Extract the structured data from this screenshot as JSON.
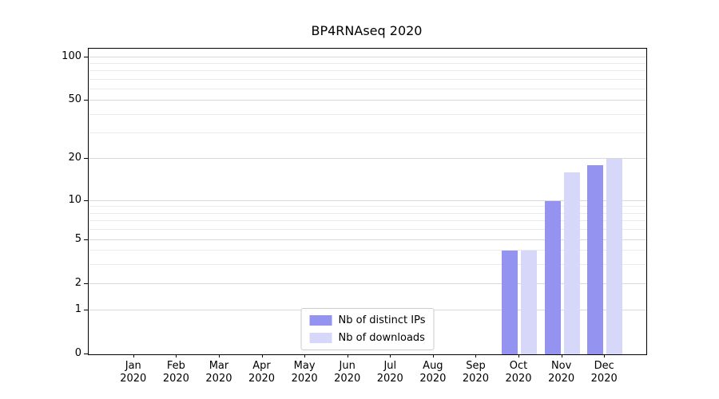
{
  "chart_data": {
    "type": "bar",
    "title": "BP4RNAseq 2020",
    "categories": [
      {
        "month": "Jan",
        "year": "2020"
      },
      {
        "month": "Feb",
        "year": "2020"
      },
      {
        "month": "Mar",
        "year": "2020"
      },
      {
        "month": "Apr",
        "year": "2020"
      },
      {
        "month": "May",
        "year": "2020"
      },
      {
        "month": "Jun",
        "year": "2020"
      },
      {
        "month": "Jul",
        "year": "2020"
      },
      {
        "month": "Aug",
        "year": "2020"
      },
      {
        "month": "Sep",
        "year": "2020"
      },
      {
        "month": "Oct",
        "year": "2020"
      },
      {
        "month": "Nov",
        "year": "2020"
      },
      {
        "month": "Dec",
        "year": "2020"
      }
    ],
    "series": [
      {
        "name": "Nb of distinct IPs",
        "color": "#9494f0",
        "values": [
          0,
          0,
          0,
          0,
          0,
          0,
          0,
          0,
          0,
          4,
          10,
          18
        ]
      },
      {
        "name": "Nb of downloads",
        "color": "#d7d7f9",
        "values": [
          0,
          0,
          0,
          0,
          0,
          0,
          0,
          0,
          0,
          4,
          16,
          20
        ]
      }
    ],
    "yscale": "symlog",
    "yticks": [
      0,
      1,
      2,
      5,
      10,
      20,
      50,
      100
    ],
    "minor_gridlines": [
      3,
      4,
      6,
      7,
      8,
      9,
      30,
      40,
      60,
      70,
      80,
      90
    ],
    "ylim": [
      0,
      110
    ],
    "xlabel": "",
    "ylabel": "",
    "grid": true,
    "legend_position": "lower center"
  }
}
